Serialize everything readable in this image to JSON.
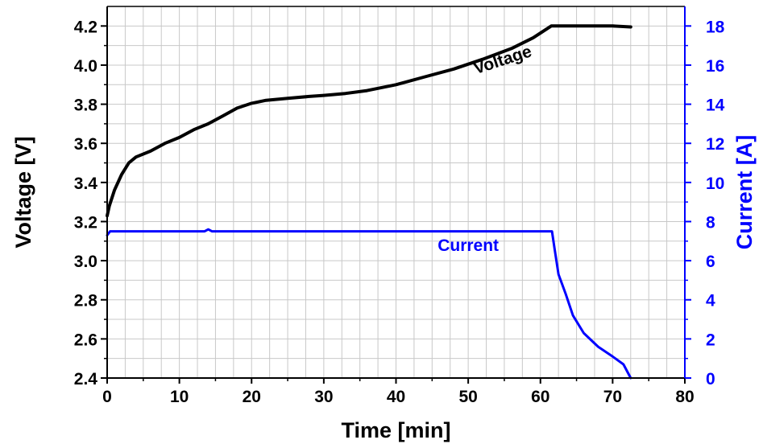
{
  "chart_data": {
    "type": "line",
    "xlabel": "Time [min]",
    "ylabel_left": "Voltage [V]",
    "ylabel_right": "Current [A]",
    "xlim": [
      0,
      80
    ],
    "ylim_left": [
      2.4,
      4.3
    ],
    "ylim_right": [
      0,
      19
    ],
    "x_ticks": [
      0,
      10,
      20,
      30,
      40,
      50,
      60,
      70,
      80
    ],
    "y_left_ticks": [
      2.4,
      2.6,
      2.8,
      3.0,
      3.2,
      3.4,
      3.6,
      3.8,
      4.0,
      4.2
    ],
    "y_right_ticks": [
      0,
      2,
      4,
      6,
      8,
      10,
      12,
      14,
      16,
      18
    ],
    "grid": true,
    "series": [
      {
        "name": "Voltage",
        "axis": "left",
        "color": "#000000",
        "points": [
          [
            0,
            3.23
          ],
          [
            0.3,
            3.28
          ],
          [
            1,
            3.36
          ],
          [
            2,
            3.44
          ],
          [
            3,
            3.5
          ],
          [
            4,
            3.53
          ],
          [
            6,
            3.56
          ],
          [
            8,
            3.6
          ],
          [
            10,
            3.63
          ],
          [
            12,
            3.67
          ],
          [
            14,
            3.7
          ],
          [
            16,
            3.74
          ],
          [
            18,
            3.78
          ],
          [
            20,
            3.805
          ],
          [
            22,
            3.82
          ],
          [
            25,
            3.83
          ],
          [
            28,
            3.84
          ],
          [
            30,
            3.845
          ],
          [
            33,
            3.855
          ],
          [
            36,
            3.87
          ],
          [
            40,
            3.9
          ],
          [
            44,
            3.94
          ],
          [
            48,
            3.98
          ],
          [
            52,
            4.03
          ],
          [
            56,
            4.085
          ],
          [
            59,
            4.14
          ],
          [
            61.5,
            4.2
          ],
          [
            66,
            4.2
          ],
          [
            70,
            4.2
          ],
          [
            72.5,
            4.195
          ]
        ]
      },
      {
        "name": "Current",
        "axis": "right",
        "color": "#0000ff",
        "points": [
          [
            0,
            7.3
          ],
          [
            0.4,
            7.5
          ],
          [
            5,
            7.5
          ],
          [
            10,
            7.5
          ],
          [
            13.5,
            7.5
          ],
          [
            14,
            7.6
          ],
          [
            14.5,
            7.5
          ],
          [
            20,
            7.5
          ],
          [
            30,
            7.5
          ],
          [
            40,
            7.5
          ],
          [
            50,
            7.5
          ],
          [
            55,
            7.5
          ],
          [
            61.6,
            7.5
          ],
          [
            62,
            6.5
          ],
          [
            62.5,
            5.3
          ],
          [
            63.5,
            4.3
          ],
          [
            64.5,
            3.2
          ],
          [
            66,
            2.3
          ],
          [
            68,
            1.6
          ],
          [
            70,
            1.1
          ],
          [
            71.5,
            0.7
          ],
          [
            72.5,
            0
          ]
        ]
      }
    ],
    "annotations": [
      {
        "text": "Voltage",
        "x": 55,
        "y": 4.0,
        "axis": "left",
        "rotation": -18,
        "color": "#000000"
      },
      {
        "text": "Current",
        "x": 50,
        "y": 6.5,
        "axis": "right",
        "rotation": 0,
        "color": "#0000ff"
      }
    ]
  }
}
